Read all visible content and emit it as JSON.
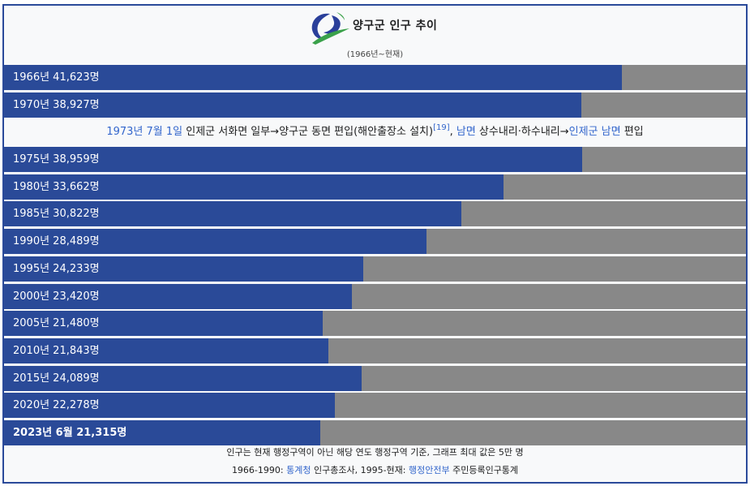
{
  "header": {
    "title": "양구군 인구 추이",
    "subtitle": "(1966년~현재)"
  },
  "event": {
    "date": "1973년 7월 1일",
    "text1": " 인제군 서화면 일부→양구군 동면 편입(해안출장소 설치)",
    "ref": "[19]",
    "sep": ", ",
    "link2": "남면",
    "text2": " 상수내리·하수내리→",
    "link3": "인제군 남면",
    "text3": " 편입"
  },
  "footer": {
    "note": "인구는 현재 행정구역이 아닌 해당 연도 행정구역 기준, 그래프 최대 값은 5만 명",
    "src_prefix": "1966-1990: ",
    "src_link1": "통계청",
    "src_mid": " 인구총조사, 1995-현재: ",
    "src_link2": "행정안전부",
    "src_suffix": " 주민등록인구통계"
  },
  "colors": {
    "bar": "#2a4a98",
    "track": "#888888",
    "border": "#2b4a9a",
    "link": "#3366cc"
  },
  "chart_data": {
    "type": "bar",
    "orientation": "horizontal",
    "max": 50000,
    "categories": [
      "1966년",
      "1970년",
      "1975년",
      "1980년",
      "1985년",
      "1990년",
      "1995년",
      "2000년",
      "2005년",
      "2010년",
      "2015년",
      "2020년",
      "2023년 6월"
    ],
    "values": [
      41623,
      38927,
      38959,
      33662,
      30822,
      28489,
      24233,
      23420,
      21480,
      21843,
      24089,
      22278,
      21315
    ],
    "labels": [
      "1966년 41,623명",
      "1970년 38,927명",
      "1975년 38,959명",
      "1980년 33,662명",
      "1985년 30,822명",
      "1990년 28,489명",
      "1995년 24,233명",
      "2000년 23,420명",
      "2005년 21,480명",
      "2010년 21,843명",
      "2015년 24,089명",
      "2020년 22,278명",
      "2023년 6월 21,315명"
    ]
  }
}
